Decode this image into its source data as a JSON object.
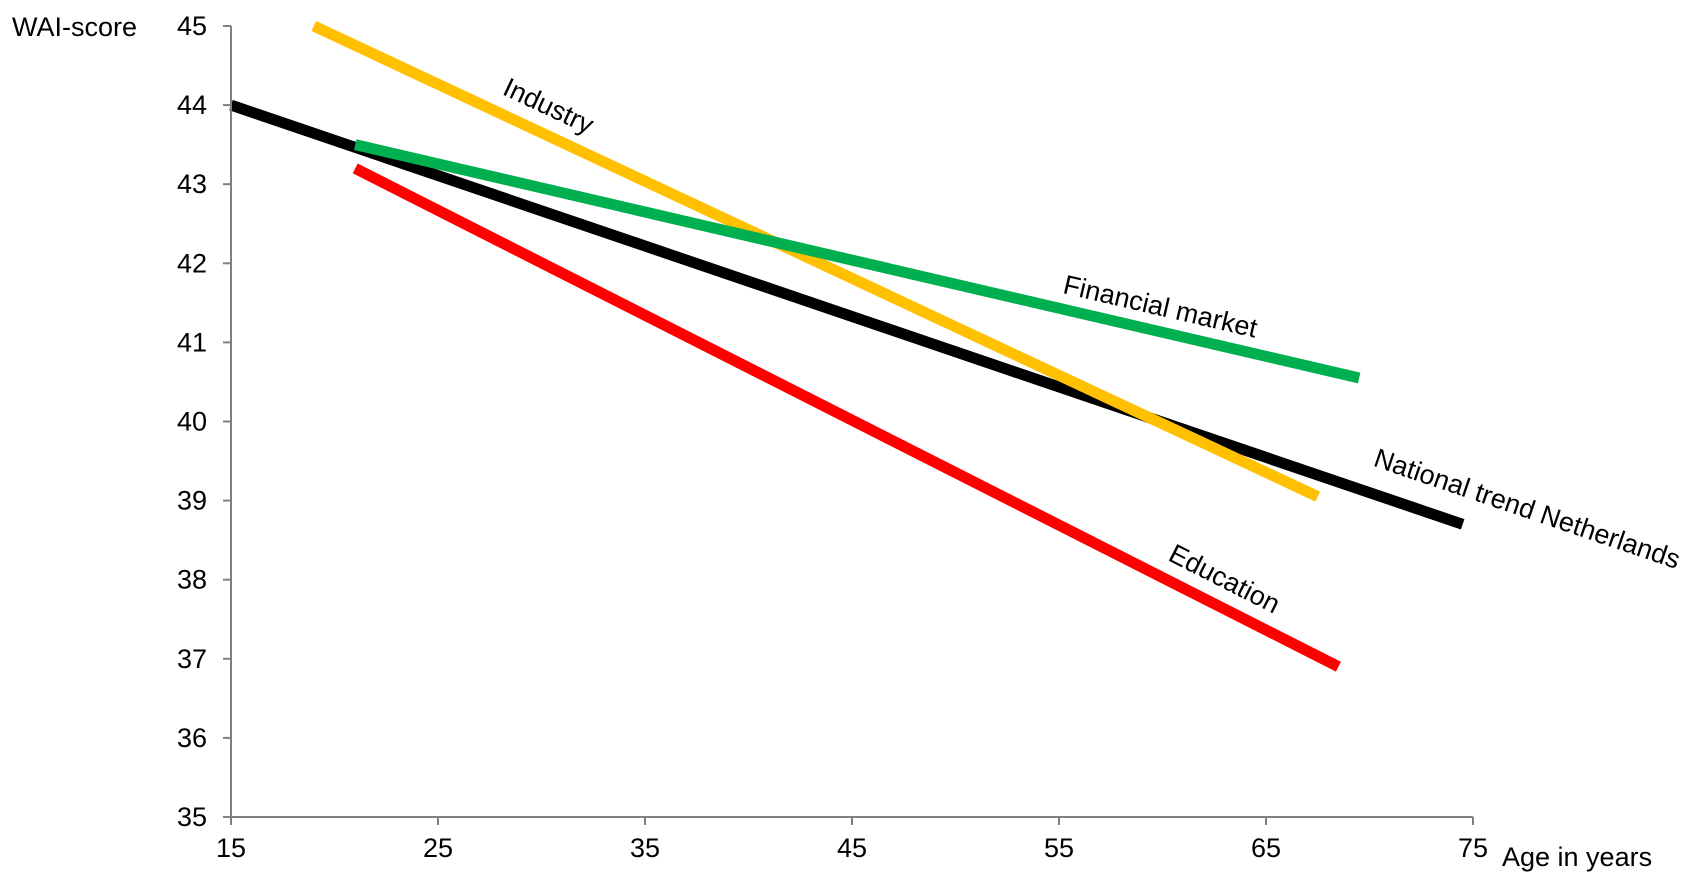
{
  "chart_data": {
    "type": "line",
    "ylabel": "WAI-score",
    "xlabel": "Age in years",
    "xlim": [
      15,
      75
    ],
    "ylim": [
      35,
      45
    ],
    "xticks": [
      15,
      25,
      35,
      45,
      55,
      65,
      75
    ],
    "yticks": [
      35,
      36,
      37,
      38,
      39,
      40,
      41,
      42,
      43,
      44,
      45
    ],
    "xtick_labels": [
      "15",
      "25",
      "35",
      "45",
      "55",
      "65",
      "75"
    ],
    "ytick_labels": [
      "35",
      "36",
      "37",
      "38",
      "39",
      "40",
      "41",
      "42",
      "43",
      "44",
      "45"
    ],
    "grid": false,
    "series": [
      {
        "name": "National trend Netherlands",
        "color": "#000000",
        "x": [
          15,
          74.5
        ],
        "y": [
          44.0,
          38.7
        ]
      },
      {
        "name": "Industry",
        "color": "#FFC000",
        "x": [
          19,
          67.5
        ],
        "y": [
          45.0,
          39.05
        ]
      },
      {
        "name": "Financial market",
        "color": "#00B050",
        "x": [
          21,
          69.5
        ],
        "y": [
          43.5,
          40.55
        ]
      },
      {
        "name": "Education",
        "color": "#FF0000",
        "x": [
          21,
          68.5
        ],
        "y": [
          43.2,
          36.9
        ]
      }
    ]
  }
}
